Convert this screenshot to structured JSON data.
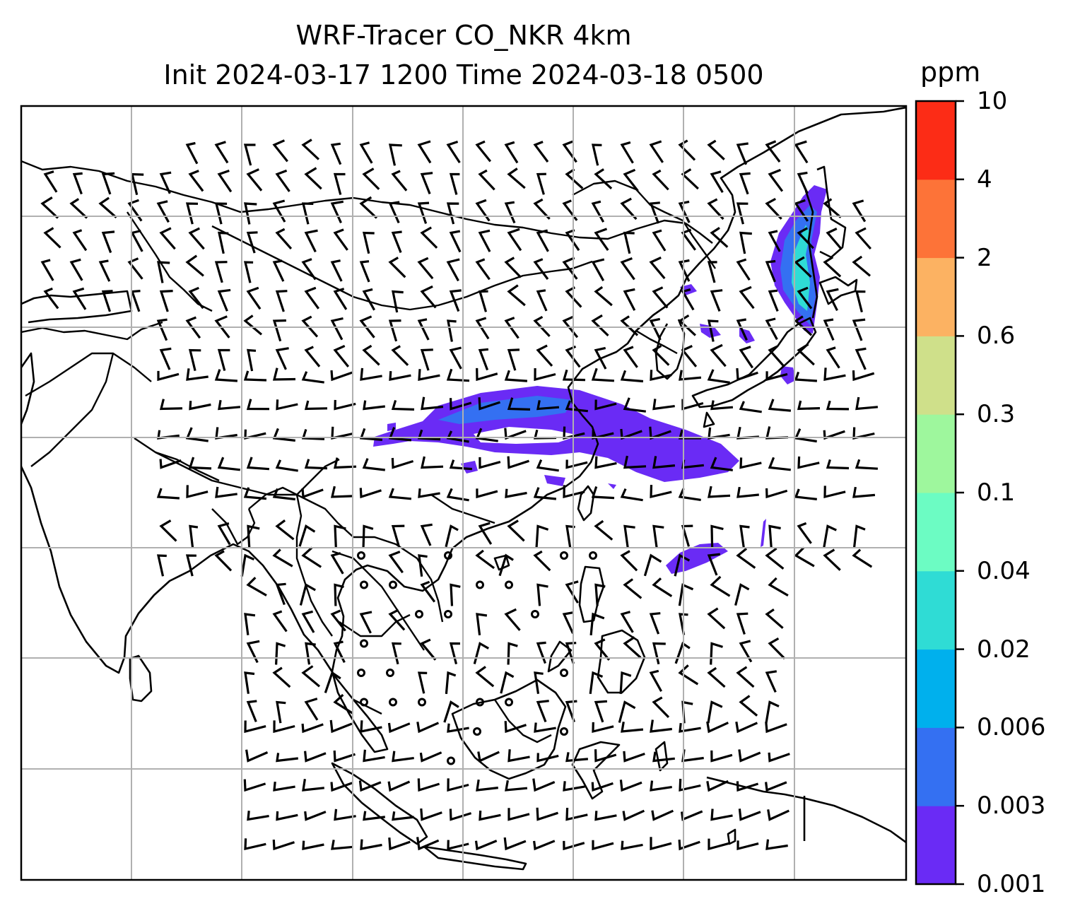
{
  "title": {
    "line1": "WRF-Tracer CO_NKR 4km",
    "line2": "Init 2024-03-17 1200 Time 2024-03-18 0500"
  },
  "colorbar": {
    "units": "ppm",
    "levels": [
      "0.001",
      "0.003",
      "0.006",
      "0.02",
      "0.04",
      "0.1",
      "0.3",
      "0.6",
      "2",
      "4",
      "10"
    ],
    "colors": [
      "#6a2bf5",
      "#3470f2",
      "#00b0ed",
      "#2fdcd5",
      "#6cfcc3",
      "#9ef79d",
      "#cfe08a",
      "#fcb262",
      "#fd7338",
      "#fc2c16"
    ]
  },
  "map": {
    "gridlines": "on",
    "plume_colors": [
      "#6a2bf5",
      "#3470f2"
    ]
  }
}
